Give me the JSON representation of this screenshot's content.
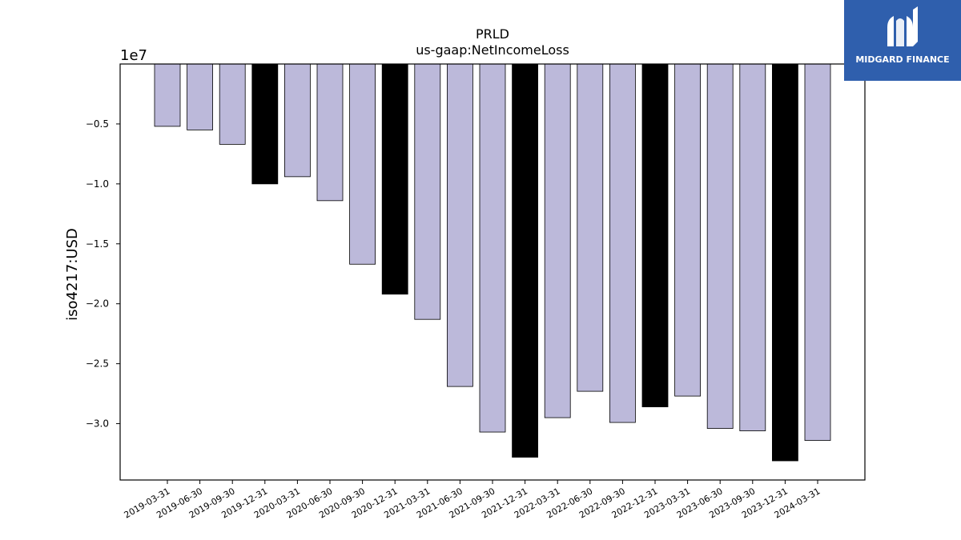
{
  "logo": {
    "text": "MIDGARD FINANCE",
    "background": "#2f5fad",
    "icon": "midgard-logo-icon"
  },
  "chart_data": {
    "type": "bar",
    "title": "PRLD",
    "subtitle": "us-gaap:NetIncomeLoss",
    "xlabel": "",
    "ylabel": "iso4217:USD",
    "offset_label": "1e7",
    "ylim": [
      -3.47,
      0.0
    ],
    "yticks": [
      -0.5,
      -1.0,
      -1.5,
      -2.0,
      -2.5,
      -3.0
    ],
    "ytick_labels": [
      "−0.5",
      "−1.0",
      "−1.5",
      "−2.0",
      "−2.5",
      "−3.0"
    ],
    "categories": [
      "2019-03-31",
      "2019-06-30",
      "2019-09-30",
      "2019-12-31",
      "2020-03-31",
      "2020-06-30",
      "2020-09-30",
      "2020-12-31",
      "2021-03-31",
      "2021-06-30",
      "2021-09-30",
      "2021-12-31",
      "2022-03-31",
      "2022-06-30",
      "2022-09-30",
      "2022-12-31",
      "2023-03-31",
      "2023-06-30",
      "2023-09-30",
      "2023-12-31",
      "2024-03-31"
    ],
    "values": [
      -0.52,
      -0.55,
      -0.67,
      -1.0,
      -0.94,
      -1.14,
      -1.67,
      -1.92,
      -2.13,
      -2.69,
      -3.07,
      -3.28,
      -2.95,
      -2.73,
      -2.99,
      -2.86,
      -2.77,
      -3.04,
      -3.06,
      -3.31,
      -3.14
    ],
    "highlight": [
      false,
      false,
      false,
      true,
      false,
      false,
      false,
      true,
      false,
      false,
      false,
      true,
      false,
      false,
      false,
      true,
      false,
      false,
      false,
      true,
      false
    ],
    "colors": {
      "bar": "#bcb9da",
      "highlight": "#000000",
      "edge": "#000000"
    },
    "grid": false,
    "legend": "none"
  }
}
